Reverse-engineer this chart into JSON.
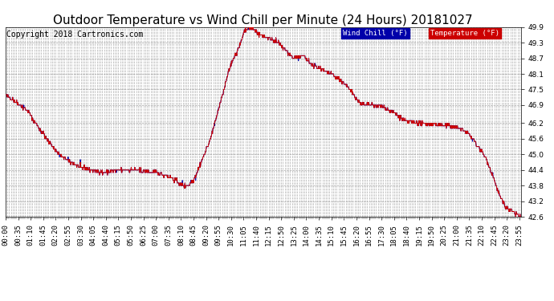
{
  "title": "Outdoor Temperature vs Wind Chill per Minute (24 Hours) 20181027",
  "copyright": "Copyright 2018 Cartronics.com",
  "legend_wind_chill": "Wind Chill (°F)",
  "legend_temperature": "Temperature (°F)",
  "ylim": [
    42.6,
    49.9
  ],
  "yticks": [
    42.6,
    43.2,
    43.8,
    44.4,
    45.0,
    45.6,
    46.2,
    46.9,
    47.5,
    48.1,
    48.7,
    49.3,
    49.9
  ],
  "line_color": "#cc0000",
  "wind_chill_color": "#0000aa",
  "background_color": "#ffffff",
  "grid_color": "#999999",
  "title_fontsize": 11,
  "tick_fontsize": 6.5,
  "copyright_fontsize": 7
}
